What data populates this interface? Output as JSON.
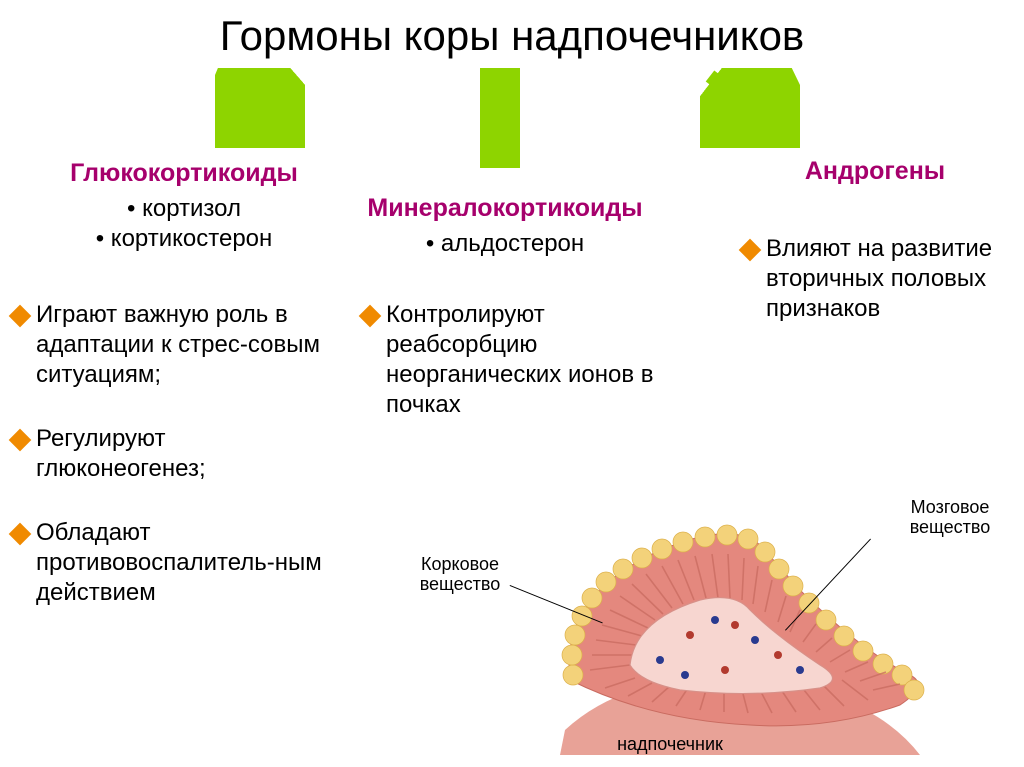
{
  "title": "Гормоны коры надпочечников",
  "arrows": {
    "fill": "#8ed400",
    "stroke": "#8ed400"
  },
  "columns": {
    "glucocorticoids": {
      "title": "Глюкокортикоиды",
      "hormones": [
        "кортизол",
        "кортикостерон"
      ],
      "bullets": [
        "Играют важную роль в адаптации к стрес-совым ситуациям;",
        "Регулируют глюконеогенез;",
        "Обладают противовоспалитель-ным действием"
      ]
    },
    "mineralocorticoids": {
      "title": "Минералокортикоиды",
      "hormones": [
        "альдостерон"
      ],
      "bullets": [
        "Контролируют реабсорбцию неорганических ионов в почках"
      ]
    },
    "androgens": {
      "title": "Андрогены",
      "bullets": [
        "Влияют на развитие вторичных половых признаков"
      ]
    }
  },
  "anatomy": {
    "labels": {
      "cortex": "Корковое\nвещество",
      "medulla": "Мозговое\nвещество",
      "organ": "надпочечник"
    },
    "colors": {
      "cortex_light": "#f5b1a8",
      "cortex_dark": "#e4887e",
      "cortex_stripe": "#c96b60",
      "medulla_fill": "#f7d6d0",
      "outline_yellow": "#f3d27a",
      "kidney": "#e8a297",
      "dot_blue": "#293a8f",
      "dot_red": "#b23a2e"
    }
  },
  "style": {
    "group_title_color": "#a6006c",
    "diamond_color": "#f08a00",
    "title_fontsize": 42,
    "group_title_fontsize": 25,
    "body_fontsize": 24,
    "label_fontsize": 18
  }
}
